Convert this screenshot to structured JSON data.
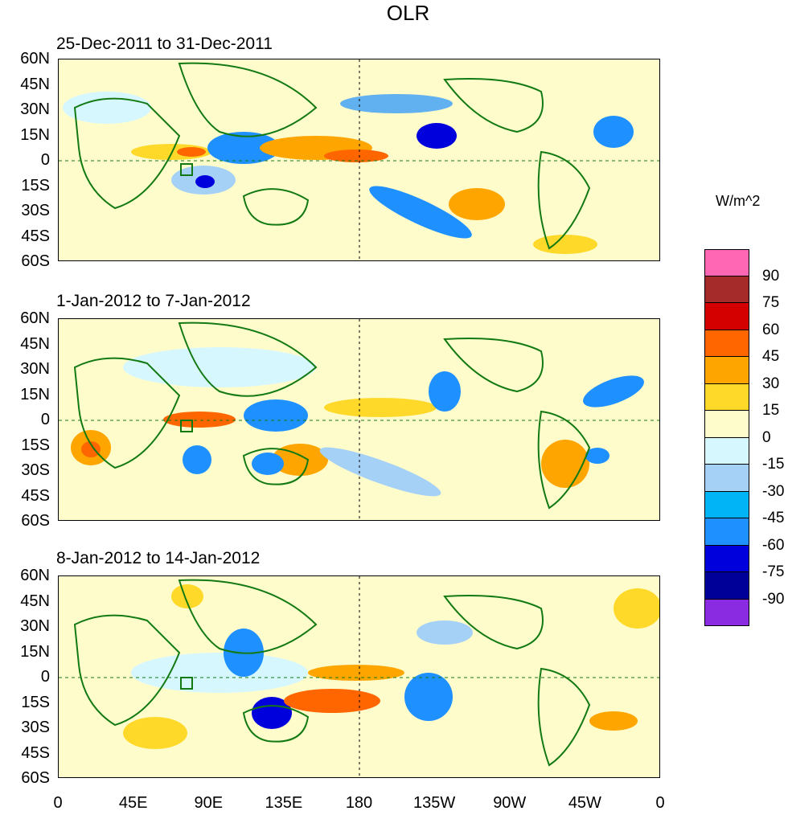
{
  "title": "OLR",
  "panels": [
    {
      "label": "25-Dec-2011 to 31-Dec-2011"
    },
    {
      "label": "1-Jan-2012 to 7-Jan-2012"
    },
    {
      "label": "8-Jan-2012 to 14-Jan-2012"
    }
  ],
  "y_ticks": [
    "60N",
    "45N",
    "30N",
    "15N",
    "0",
    "15S",
    "30S",
    "45S",
    "60S"
  ],
  "x_ticks": [
    "0",
    "45E",
    "90E",
    "135E",
    "180",
    "135W",
    "90W",
    "45W",
    "0"
  ],
  "colorbar": {
    "units": "W/m^2",
    "levels": [
      "90",
      "75",
      "60",
      "45",
      "30",
      "15",
      "0",
      "-15",
      "-30",
      "-45",
      "-60",
      "-75",
      "-90"
    ],
    "colors": [
      "#ff66b3",
      "#a52a2a",
      "#d40000",
      "#ff6600",
      "#ffa500",
      "#ffd92a",
      "#fffccc",
      "#d7f7ff",
      "#a6d1f7",
      "#00b4f5",
      "#1e90ff",
      "#0000dd",
      "#000099",
      "#8a2be2"
    ]
  },
  "colors": {
    "coastline": "#137a13",
    "background": "#ffffff"
  }
}
